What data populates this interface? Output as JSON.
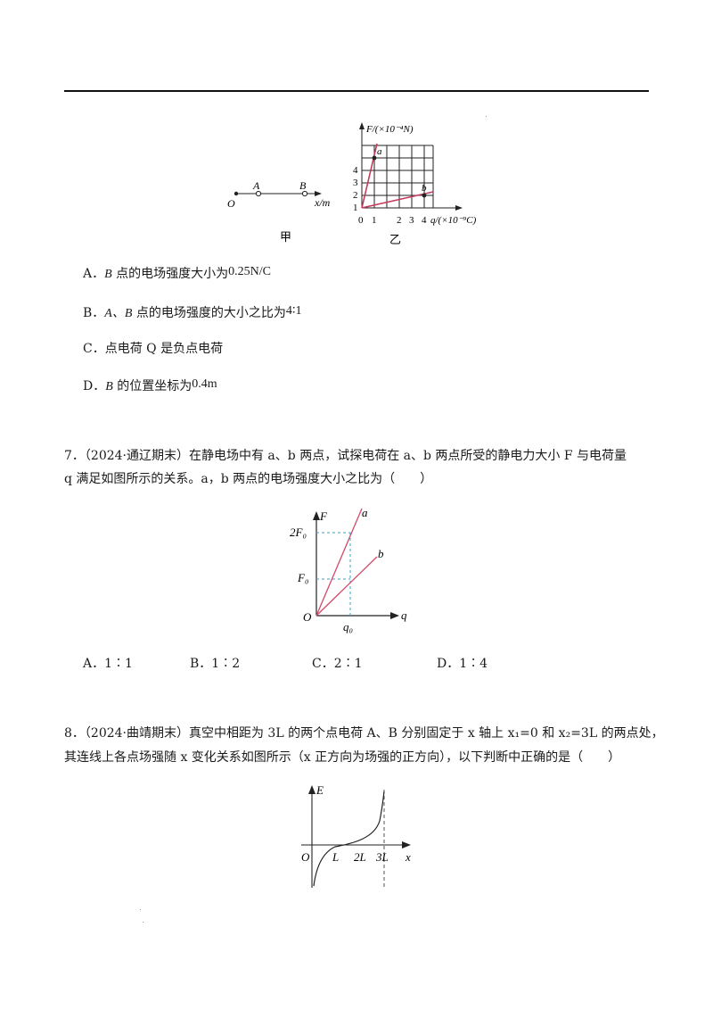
{
  "q6_figure": {
    "jia": {
      "O": "O",
      "A": "A",
      "B": "B",
      "axis": "x/m",
      "caption": "甲"
    },
    "yi": {
      "y_axis_label": "F/(×10⁻⁴N)",
      "x_axis_label": "q/(×10⁻⁹C)",
      "y_ticks": [
        "1",
        "2",
        "3",
        "4"
      ],
      "x_ticks": [
        "0",
        "1",
        "2",
        "3",
        "4"
      ],
      "point_a": "a",
      "point_b": "b",
      "caption": "乙"
    }
  },
  "q6_options": [
    {
      "letter": "A．",
      "subject": "B",
      "text": " 点的电场强度大小为",
      "value": "0.25N/C"
    },
    {
      "letter": "B．",
      "subject": "A、B",
      "text": " 点的电场强度的大小之比为",
      "value": "4∶1"
    },
    {
      "letter": "C．",
      "subject": "",
      "text": "点电荷 Q 是负点电荷",
      "value": ""
    },
    {
      "letter": "D．",
      "subject": "B",
      "text": " 的位置坐标为",
      "value": "0.4m"
    }
  ],
  "q7": {
    "line1": "7．（2024·通辽期末）在静电场中有 a、b 两点，试探电荷在 a、b 两点所受的静电力大小 F 与电荷量",
    "line2": "q 满足如图所示的关系。a，b 两点的电场强度大小之比为（　　）",
    "figure": {
      "F": "F",
      "q": "q",
      "O": "O",
      "two_F0": "2F₀",
      "F0": "F₀",
      "q0": "q₀",
      "a": "a",
      "b": "b"
    },
    "answers": [
      {
        "label": "A．1∶1"
      },
      {
        "label": "B．1∶2"
      },
      {
        "label": "C．2∶1"
      },
      {
        "label": "D．1∶4"
      }
    ]
  },
  "q8": {
    "line1": "8．（2024·曲靖期末）真空中相距为 3L 的两个点电荷 A、B 分别固定于 x 轴上 x₁=0 和 x₂=3L 的两点处，",
    "line2": "其连线上各点场强随 x 变化关系如图所示（x 正方向为场强的正方向），以下判断中正确的是（　　）",
    "figure": {
      "E": "E",
      "x": "x",
      "O": "O",
      "L": "L",
      "2L": "2L",
      "3L": "3L"
    }
  }
}
